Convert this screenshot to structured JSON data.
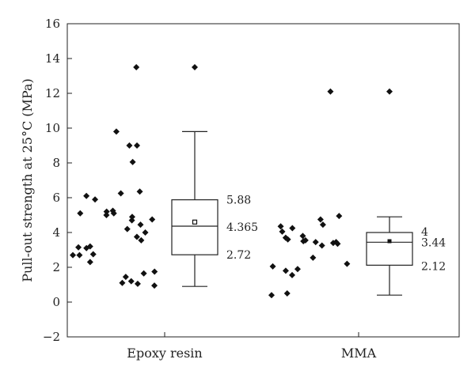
{
  "chart_data": {
    "type": "box",
    "ylabel": "Pull-out strength at 25°C (MPa)",
    "xlabel": "",
    "ylim": [
      -2,
      16
    ],
    "yticks": [
      -2,
      0,
      2,
      4,
      6,
      8,
      10,
      12,
      14,
      16
    ],
    "grid": false,
    "categories": [
      "Epoxy resin",
      "MMA"
    ],
    "groups": [
      {
        "name": "Epoxy resin",
        "box": {
          "whisker_low": 0.9,
          "q1": 2.72,
          "median": 4.365,
          "mean": 4.6,
          "q3": 5.88,
          "whisker_high": 9.8
        },
        "outliers": [
          13.5
        ],
        "stat_labels": {
          "q3": "5.88",
          "median": "4.365",
          "q1": "2.72"
        },
        "points": [
          13.5,
          9.8,
          9.0,
          9.0,
          8.05,
          6.35,
          6.25,
          6.1,
          5.9,
          5.25,
          5.2,
          5.1,
          5.1,
          5.0,
          4.9,
          4.75,
          4.7,
          4.45,
          4.2,
          4.0,
          3.75,
          3.55,
          3.2,
          3.15,
          3.1,
          2.75,
          2.7,
          2.7,
          2.3,
          1.75,
          1.65,
          1.45,
          1.2,
          1.1,
          1.05,
          0.95
        ]
      },
      {
        "name": "MMA",
        "box": {
          "whisker_low": 0.4,
          "q1": 2.12,
          "median": 3.44,
          "mean": 3.5,
          "q3": 4.0,
          "whisker_high": 4.9
        },
        "outliers": [
          12.1
        ],
        "stat_labels": {
          "q3": "4",
          "median": "3.44",
          "q1": "2.12"
        },
        "points": [
          12.1,
          4.95,
          4.75,
          4.45,
          4.35,
          4.25,
          4.05,
          3.8,
          3.7,
          3.6,
          3.55,
          3.5,
          3.45,
          3.45,
          3.4,
          3.35,
          3.25,
          2.55,
          2.2,
          2.05,
          1.9,
          1.8,
          1.55,
          0.5,
          0.4
        ]
      }
    ]
  }
}
